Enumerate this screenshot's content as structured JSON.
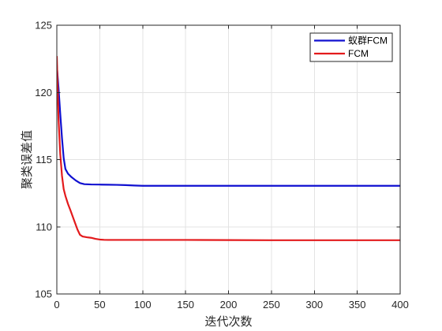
{
  "chart_data": {
    "type": "line",
    "xlabel": "迭代次数",
    "ylabel": "聚类误差值",
    "xlim": [
      0,
      400
    ],
    "ylim": [
      105,
      125
    ],
    "xticks": [
      0,
      50,
      100,
      150,
      200,
      250,
      300,
      350,
      400
    ],
    "yticks": [
      105,
      110,
      115,
      120,
      125
    ],
    "grid": true,
    "legend": {
      "position": "top-right"
    },
    "series": [
      {
        "name": "蚁群FCM",
        "color": "#1010d0",
        "x": [
          0,
          2,
          4,
          6,
          8,
          10,
          13,
          17,
          22,
          27,
          32,
          40,
          50,
          60,
          70,
          80,
          90,
          100,
          150,
          200,
          250,
          300,
          350,
          400
        ],
        "y": [
          122.0,
          120.3,
          118.4,
          116.6,
          115.1,
          114.3,
          113.95,
          113.7,
          113.45,
          113.25,
          113.17,
          113.15,
          113.14,
          113.13,
          113.12,
          113.1,
          113.07,
          113.05,
          113.05,
          113.05,
          113.05,
          113.05,
          113.05,
          113.05
        ]
      },
      {
        "name": "FCM",
        "color": "#e31a1c",
        "x": [
          0,
          1,
          2,
          4,
          6,
          8,
          10,
          13,
          16,
          20,
          24,
          27,
          30,
          35,
          40,
          45,
          50,
          55,
          60,
          80,
          100,
          150,
          200,
          250,
          300,
          350,
          400
        ],
        "y": [
          122.7,
          120.2,
          118.0,
          115.4,
          113.8,
          112.8,
          112.3,
          111.7,
          111.2,
          110.5,
          109.8,
          109.4,
          109.28,
          109.22,
          109.18,
          109.1,
          109.05,
          109.03,
          109.02,
          109.02,
          109.02,
          109.02,
          109.01,
          109.0,
          109.0,
          109.0,
          109.0
        ]
      }
    ]
  }
}
